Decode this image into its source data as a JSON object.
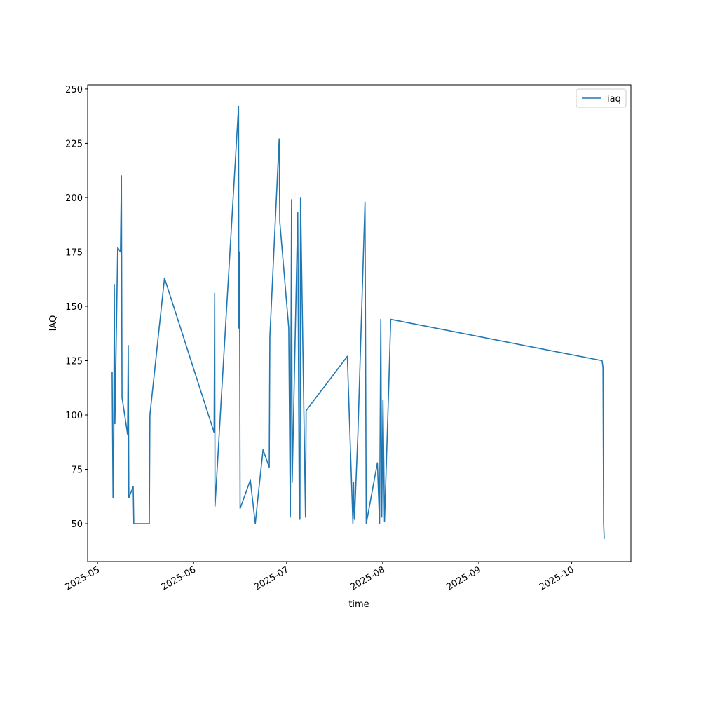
{
  "chart_data": {
    "type": "line",
    "xlabel": "time",
    "ylabel": "IAQ",
    "legend": "upper right",
    "x": [
      20213.7,
      20214.0,
      20214.2,
      20214.4,
      20214.6,
      20215.5,
      20216.4,
      20216.7,
      20216.9,
      20218.7,
      20218.9,
      20219.1,
      20220.5,
      20220.7,
      20225.7,
      20225.9,
      20230.6,
      20246.6,
      20246.8,
      20246.9,
      20248.9,
      20254.5,
      20254.6,
      20254.8,
      20255.0,
      20258.3,
      20259.9,
      20260.6,
      20262.4,
      20264.4,
      20264.6,
      20267.6,
      20267.8,
      20270.7,
      20271.2,
      20271.6,
      20271.8,
      20273.6,
      20274.1,
      20274.3,
      20274.5,
      20276.1,
      20276.3,
      20289.6,
      20291.4,
      20291.6,
      20291.9,
      20293.0,
      20295.3,
      20295.7,
      20299.3,
      20300.0,
      20300.4,
      20300.7,
      20301.1,
      20301.6,
      20302.9,
      20303.6,
      20371.8,
      20372.1,
      20372.3,
      20372.5
    ],
    "series": [
      {
        "name": "iaq",
        "color": "#1f77b4",
        "values": [
          120,
          62,
          74,
          160,
          96,
          177,
          175,
          210,
          108,
          91,
          132,
          62,
          67,
          50,
          50,
          100,
          163,
          92,
          156,
          58,
          107,
          242,
          140,
          175,
          57,
          70,
          50,
          60,
          84,
          76,
          136,
          227,
          189,
          140,
          53,
          199,
          69,
          193,
          53,
          52,
          200,
          53,
          102,
          127,
          50,
          69,
          52,
          91,
          198,
          50,
          78,
          50,
          144,
          53,
          107,
          51,
          110,
          144,
          125,
          122,
          50,
          43
        ]
      }
    ],
    "xlim": [
      20205.8,
      20381.1
    ],
    "xticks": [
      {
        "value": 20209,
        "label": "2025-05"
      },
      {
        "value": 20240,
        "label": "2025-06"
      },
      {
        "value": 20270,
        "label": "2025-07"
      },
      {
        "value": 20301,
        "label": "2025-08"
      },
      {
        "value": 20332,
        "label": "2025-09"
      },
      {
        "value": 20362,
        "label": "2025-10"
      }
    ],
    "ylim": [
      32.6,
      251.9
    ],
    "yticks": [
      50,
      75,
      100,
      125,
      150,
      175,
      200,
      225,
      250
    ]
  }
}
